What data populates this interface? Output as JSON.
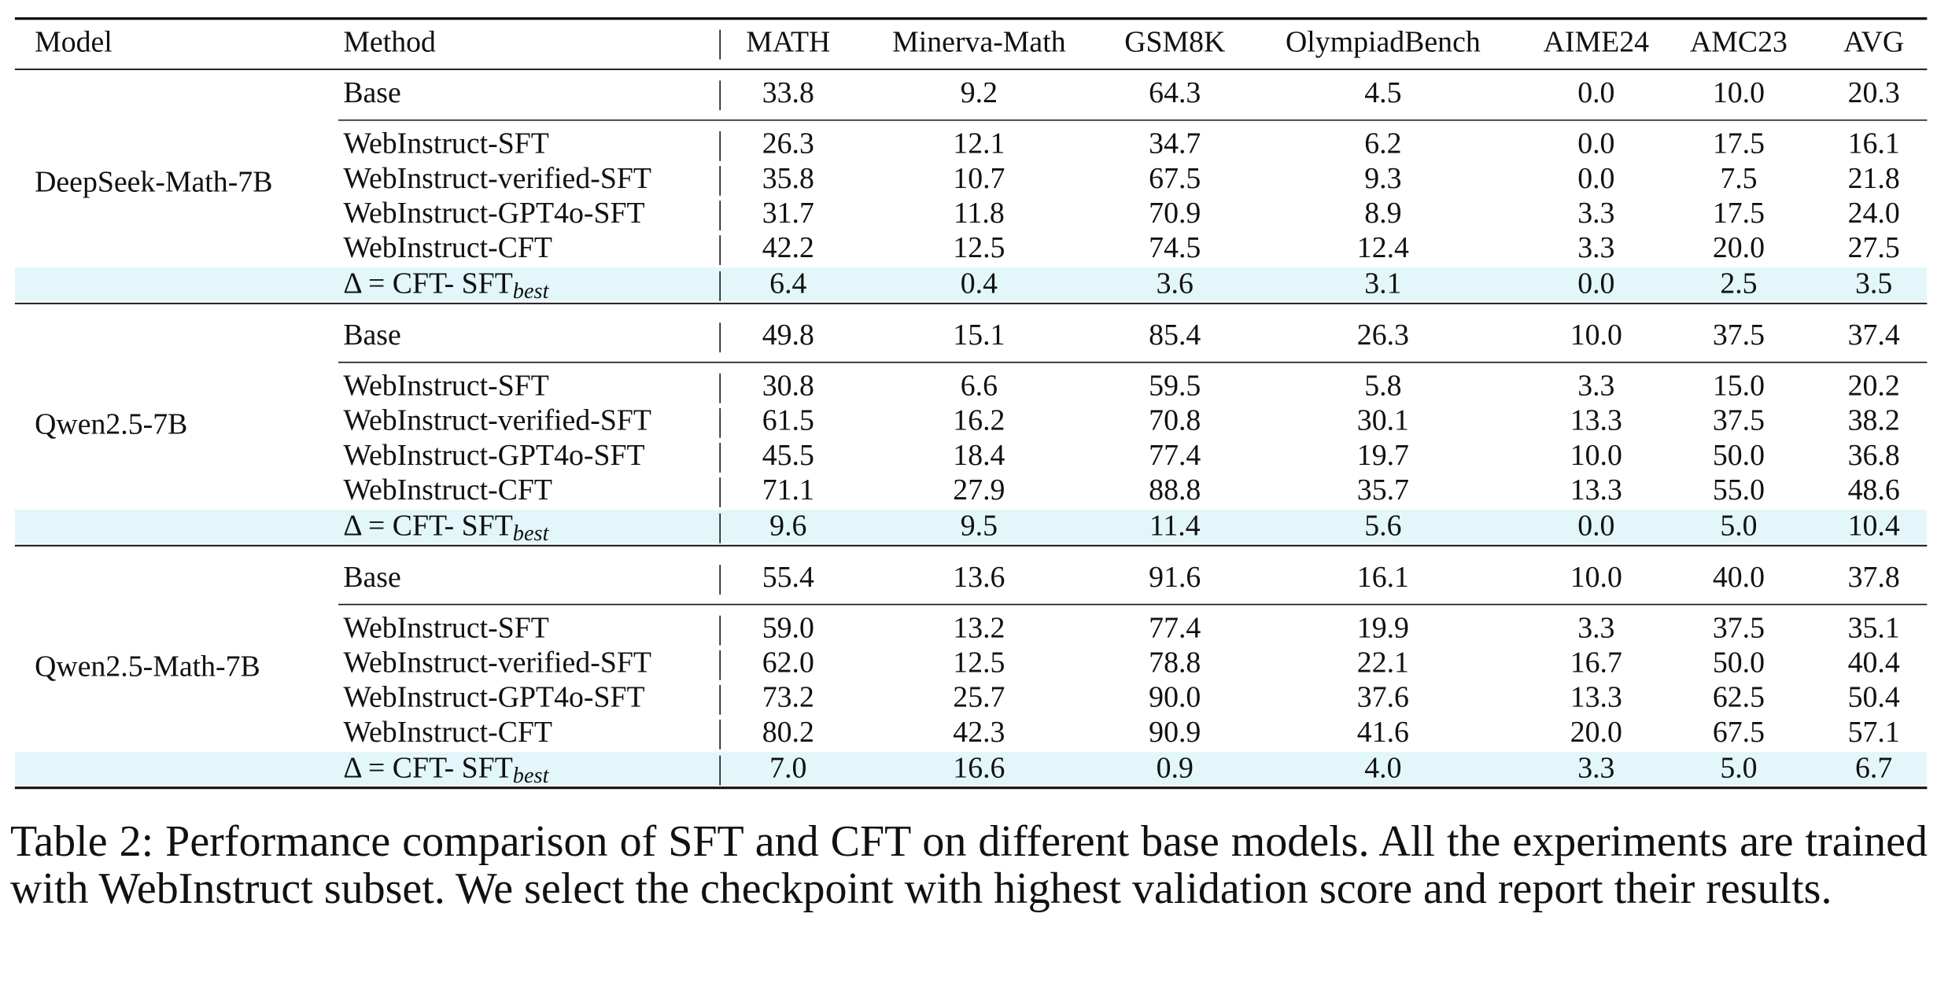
{
  "header": {
    "columns": [
      "Model",
      "Method",
      "MATH",
      "Minerva-Math",
      "GSM8K",
      "OlympiadBench",
      "AIME24",
      "AMC23",
      "AVG"
    ]
  },
  "table": {
    "groups": [
      {
        "model": "DeepSeek-Math-7B",
        "rows": [
          {
            "method": "Base",
            "values": [
              "33.8",
              "9.2",
              "64.3",
              "4.5",
              "0.0",
              "10.0",
              "20.3"
            ]
          },
          {
            "method": "WebInstruct-SFT",
            "values": [
              "26.3",
              "12.1",
              "34.7",
              "6.2",
              "0.0",
              "17.5",
              "16.1"
            ]
          },
          {
            "method": "WebInstruct-verified-SFT",
            "values": [
              "35.8",
              "10.7",
              "67.5",
              "9.3",
              "0.0",
              "7.5",
              "21.8"
            ]
          },
          {
            "method": "WebInstruct-GPT4o-SFT",
            "values": [
              "31.7",
              "11.8",
              "70.9",
              "8.9",
              "3.3",
              "17.5",
              "24.0"
            ]
          },
          {
            "method": "WebInstruct-CFT",
            "values": [
              "42.2",
              "12.5",
              "74.5",
              "12.4",
              "3.3",
              "20.0",
              "27.5"
            ]
          },
          {
            "method": "Δ = CFT- SFT",
            "subscript": "best",
            "values": [
              "6.4",
              "0.4",
              "3.6",
              "3.1",
              "0.0",
              "2.5",
              "3.5"
            ]
          }
        ]
      },
      {
        "model": "Qwen2.5-7B",
        "rows": [
          {
            "method": "Base",
            "values": [
              "49.8",
              "15.1",
              "85.4",
              "26.3",
              "10.0",
              "37.5",
              "37.4"
            ]
          },
          {
            "method": "WebInstruct-SFT",
            "values": [
              "30.8",
              "6.6",
              "59.5",
              "5.8",
              "3.3",
              "15.0",
              "20.2"
            ]
          },
          {
            "method": "WebInstruct-verified-SFT",
            "values": [
              "61.5",
              "16.2",
              "70.8",
              "30.1",
              "13.3",
              "37.5",
              "38.2"
            ]
          },
          {
            "method": "WebInstruct-GPT4o-SFT",
            "values": [
              "45.5",
              "18.4",
              "77.4",
              "19.7",
              "10.0",
              "50.0",
              "36.8"
            ]
          },
          {
            "method": "WebInstruct-CFT",
            "values": [
              "71.1",
              "27.9",
              "88.8",
              "35.7",
              "13.3",
              "55.0",
              "48.6"
            ]
          },
          {
            "method": "Δ = CFT- SFT",
            "subscript": "best",
            "values": [
              "9.6",
              "9.5",
              "11.4",
              "5.6",
              "0.0",
              "5.0",
              "10.4"
            ]
          }
        ]
      },
      {
        "model": "Qwen2.5-Math-7B",
        "rows": [
          {
            "method": "Base",
            "values": [
              "55.4",
              "13.6",
              "91.6",
              "16.1",
              "10.0",
              "40.0",
              "37.8"
            ]
          },
          {
            "method": "WebInstruct-SFT",
            "values": [
              "59.0",
              "13.2",
              "77.4",
              "19.9",
              "3.3",
              "37.5",
              "35.1"
            ]
          },
          {
            "method": "WebInstruct-verified-SFT",
            "values": [
              "62.0",
              "12.5",
              "78.8",
              "22.1",
              "16.7",
              "50.0",
              "40.4"
            ]
          },
          {
            "method": "WebInstruct-GPT4o-SFT",
            "values": [
              "73.2",
              "25.7",
              "90.0",
              "37.6",
              "13.3",
              "62.5",
              "50.4"
            ]
          },
          {
            "method": "WebInstruct-CFT",
            "values": [
              "80.2",
              "42.3",
              "90.9",
              "41.6",
              "20.0",
              "67.5",
              "57.1"
            ]
          },
          {
            "method": "Δ = CFT- SFT",
            "subscript": "best",
            "values": [
              "7.0",
              "16.6",
              "0.9",
              "4.0",
              "3.3",
              "5.0",
              "6.7"
            ]
          }
        ]
      }
    ]
  },
  "caption": "Table 2: Performance comparison of SFT and CFT on different base models. All the experiments are trained with WebInstruct subset. We select the checkpoint with highest validation score and report their results."
}
